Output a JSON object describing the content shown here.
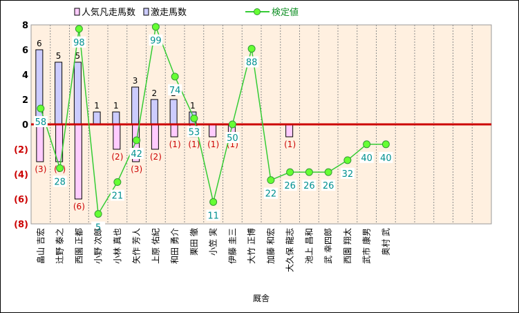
{
  "chart_data": {
    "type": "bar+line",
    "categories": [
      "畠山 吉宏",
      "辻野 泰之",
      "西園 正都",
      "小野 次郎",
      "小林 真也",
      "矢作 芳人",
      "上原 佑紀",
      "和田 勇介",
      "栗田 徹",
      "小笠 実",
      "伊藤 圭三",
      "大竹 正博",
      "加藤 和宏",
      "大久保 龍志",
      "池上 昌和",
      "武 幸四郎",
      "西園 翔太",
      "武市 康男",
      "奥村 武"
    ],
    "series": [
      {
        "name": "人気凡走馬数",
        "type": "bar",
        "color": "#ffccff",
        "values": [
          -3,
          -3,
          -6,
          null,
          -2,
          -3,
          -2,
          -1,
          -1,
          -1,
          -1,
          null,
          null,
          -1,
          null,
          null,
          null,
          null,
          null
        ],
        "labels": [
          "(3)",
          "(3)",
          "(6)",
          "",
          "(2)",
          "(3)",
          "(2)",
          "(1)",
          "(1)",
          "(1)",
          "(1)",
          "",
          "",
          "(1)",
          "",
          "",
          "",
          "",
          ""
        ]
      },
      {
        "name": "激走馬数",
        "type": "bar",
        "color": "#ccccff",
        "values": [
          6,
          5,
          5,
          1,
          1,
          3,
          2,
          2,
          1,
          null,
          null,
          null,
          null,
          null,
          null,
          null,
          null,
          null,
          null
        ],
        "labels": [
          "6",
          "5",
          "5",
          "1",
          "1",
          "3",
          "2",
          "2",
          "1",
          "",
          "",
          "",
          "",
          "",
          "",
          "",
          "",
          "",
          ""
        ]
      },
      {
        "name": "検定値",
        "type": "line",
        "color": "#33cc33",
        "values": [
          58,
          28,
          98,
          5,
          21,
          42,
          99,
          74,
          53,
          11,
          50,
          88,
          22,
          26,
          26,
          26,
          32,
          40,
          40
        ],
        "labels": [
          "58",
          "28",
          "98",
          "5",
          "21",
          "42",
          "99",
          "74",
          "53",
          "11",
          "50",
          "88",
          "22",
          "26",
          "26",
          "26",
          "32",
          "40",
          "40"
        ]
      }
    ],
    "y_ticks": [
      "8",
      "6",
      "4",
      "2",
      "0",
      "(2)",
      "(4)",
      "(6)",
      "(8)"
    ],
    "ylim": [
      -8,
      8
    ],
    "xlabel": "厩舎",
    "legend_position": "top",
    "plot_background": "#fff0e0",
    "zero_line_color": "#cc0000"
  }
}
